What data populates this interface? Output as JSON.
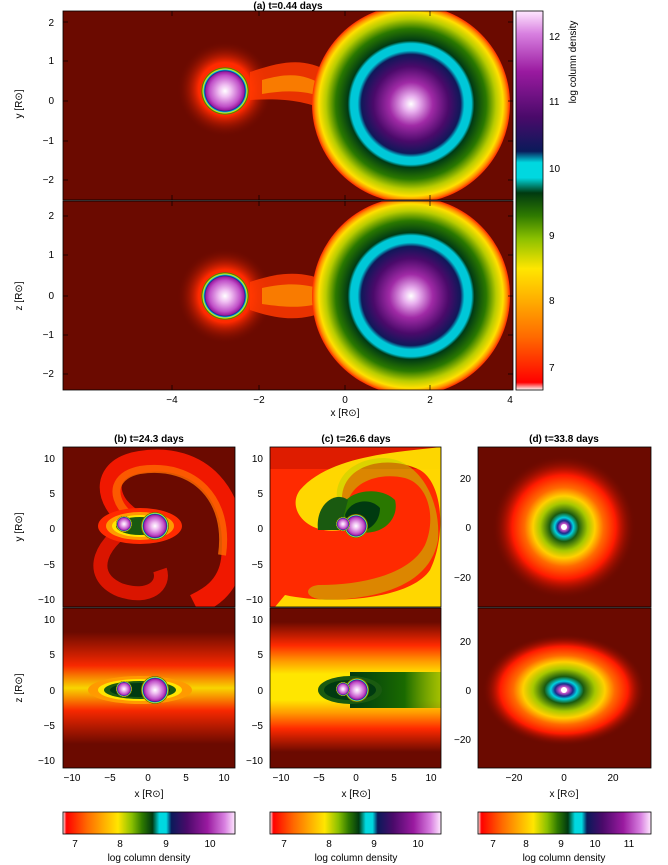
{
  "figure": {
    "colors": {
      "background": "#6b0a00",
      "scale": [
        "#6b0a00",
        "#d80000",
        "#ff3a00",
        "#ff9a00",
        "#ffe600",
        "#a6c800",
        "#2f7a00",
        "#003a10",
        "#00d8e0",
        "#0a1a5a",
        "#4a0a6a",
        "#9a1aa0",
        "#d880e0",
        "#ffffff"
      ]
    },
    "top": {
      "title": "(a) t=0.44 days",
      "upper_ylabel": "y [R⊙]",
      "lower_ylabel": "z [R⊙]",
      "xlabel": "x [R⊙]",
      "x_ticks": [
        "−4",
        "−2",
        "0",
        "2",
        "4"
      ],
      "y_ticks": [
        "2",
        "1",
        "0",
        "−1",
        "−2"
      ],
      "colorbar_label": "log column density",
      "colorbar_ticks": [
        "12",
        "11",
        "10",
        "9",
        "8",
        "7"
      ]
    },
    "panels": [
      {
        "title": "(b) t=24.3 days",
        "upper_ylabel": "y [R⊙]",
        "lower_ylabel": "z [R⊙]",
        "xlabel": "x [R⊙]",
        "x_ticks": [
          "−10",
          "−5",
          "0",
          "5",
          "10"
        ],
        "y_ticks": [
          "10",
          "5",
          "0",
          "−5",
          "−10"
        ],
        "colorbar_label": "log column density",
        "colorbar_ticks": [
          "7",
          "8",
          "9",
          "10"
        ]
      },
      {
        "title": "(c) t=26.6 days",
        "upper_ylabel": "",
        "lower_ylabel": "",
        "xlabel": "x [R⊙]",
        "x_ticks": [
          "−10",
          "−5",
          "0",
          "5",
          "10"
        ],
        "y_ticks": [
          "10",
          "5",
          "0",
          "−5",
          "−10"
        ],
        "colorbar_label": "log column density",
        "colorbar_ticks": [
          "7",
          "8",
          "9",
          "10"
        ]
      },
      {
        "title": "(d) t=33.8 days",
        "upper_ylabel": "",
        "lower_ylabel": "",
        "xlabel": "x [R⊙]",
        "x_ticks": [
          "−20",
          "0",
          "20"
        ],
        "y_ticks": [
          "20",
          "0",
          "−20"
        ],
        "colorbar_label": "log column density",
        "colorbar_ticks": [
          "7",
          "8",
          "9",
          "10",
          "11"
        ]
      }
    ]
  }
}
